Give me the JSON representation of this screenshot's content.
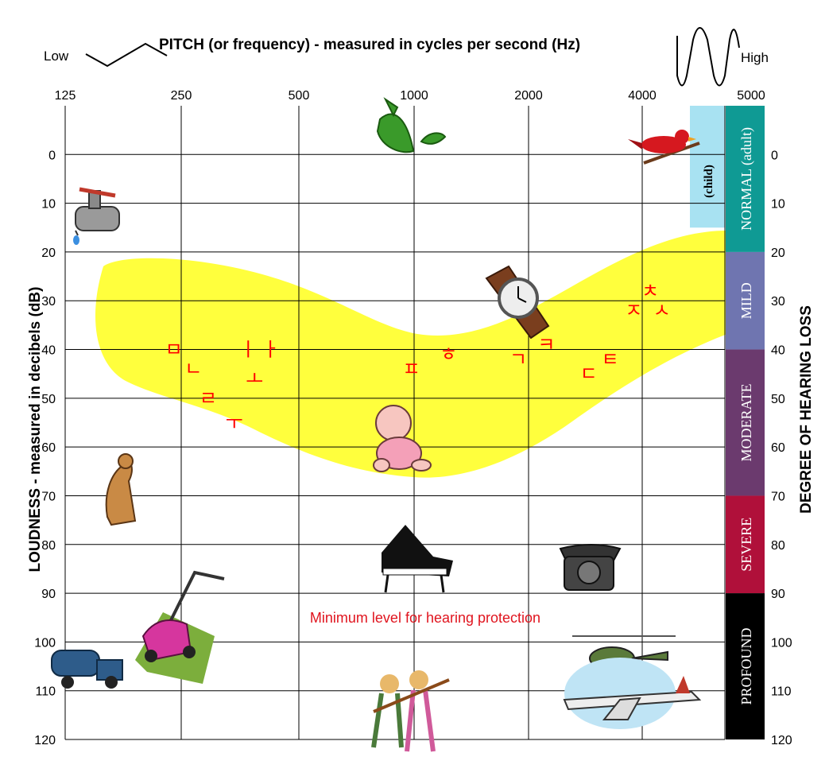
{
  "header": {
    "title": "PITCH (or frequency) - measured in cycles per second (Hz)",
    "low_label": "Low",
    "high_label": "High"
  },
  "annotation": {
    "protection_text": "Minimum level for hearing protection",
    "protection_color": "#e0141e"
  },
  "colors": {
    "speech_banana": "#ffff33",
    "grid": "#000000",
    "phoneme": "#ff0000",
    "normal_child": "#a8e2f2",
    "normal_adult": "#0f9a94",
    "mild": "#6f75b0",
    "moderate": "#6b3a6e",
    "severe": "#b0103a",
    "profound": "#000000"
  },
  "icons": [
    "leaf-icon",
    "bird-icon",
    "faucet-icon",
    "watch-icon",
    "baby-icon",
    "dog-icon",
    "piano-icon",
    "telephone-icon",
    "lawnmower-icon",
    "truck-icon",
    "rock-band-icon",
    "helicopter-icon",
    "airplane-icon"
  ],
  "chart_data": {
    "type": "audiogram",
    "xlabel": "PITCH (or frequency) - measured in cycles per second (Hz)",
    "ylabel": "LOUDNESS - measured in decibels (dB)",
    "right_label": "DEGREE OF HEARING LOSS",
    "x_ticks": [
      "125",
      "250",
      "500",
      "1000",
      "2000",
      "4000",
      "5000"
    ],
    "y_ticks": [
      0,
      10,
      20,
      30,
      40,
      50,
      60,
      70,
      80,
      90,
      100,
      110,
      120
    ],
    "ylim": [
      120,
      -10
    ],
    "grid": true,
    "hearing_loss_bands": [
      {
        "label": "NORMAL (adult)",
        "range": [
          -10,
          20
        ],
        "color": "#0f9a94"
      },
      {
        "label": "MILD",
        "range": [
          20,
          40
        ],
        "color": "#6f75b0"
      },
      {
        "label": "MODERATE",
        "range": [
          40,
          70
        ],
        "color": "#6b3a6e"
      },
      {
        "label": "SEVERE",
        "range": [
          70,
          90
        ],
        "color": "#b0103a"
      },
      {
        "label": "PROFOUND",
        "range": [
          90,
          120
        ],
        "color": "#000000"
      }
    ],
    "child_band": {
      "label": "(child)",
      "range": [
        -10,
        15
      ]
    },
    "protection_level_db": 90,
    "phonemes": [
      {
        "label": "ㅁ",
        "x": 240,
        "y": 40
      },
      {
        "label": "ㄴ",
        "x": 270,
        "y": 44
      },
      {
        "label": "ㄹ",
        "x": 295,
        "y": 50
      },
      {
        "label": "ㅜ",
        "x": 345,
        "y": 55
      },
      {
        "label": "ㅣ",
        "x": 375,
        "y": 40
      },
      {
        "label": "ㅗ",
        "x": 390,
        "y": 46
      },
      {
        "label": "ㅏ",
        "x": 430,
        "y": 40
      },
      {
        "label": "ㅍ",
        "x": 1000,
        "y": 44
      },
      {
        "label": "ㅎ",
        "x": 1250,
        "y": 41
      },
      {
        "label": "ㄱ",
        "x": 1900,
        "y": 42
      },
      {
        "label": "ㅋ",
        "x": 2250,
        "y": 39
      },
      {
        "label": "ㄷ",
        "x": 2900,
        "y": 45
      },
      {
        "label": "ㅌ",
        "x": 3300,
        "y": 42
      },
      {
        "label": "ㅊ",
        "x": 4200,
        "y": 28
      },
      {
        "label": "ㅈ",
        "x": 3800,
        "y": 32
      },
      {
        "label": "ㅅ",
        "x": 4500,
        "y": 32
      }
    ]
  }
}
